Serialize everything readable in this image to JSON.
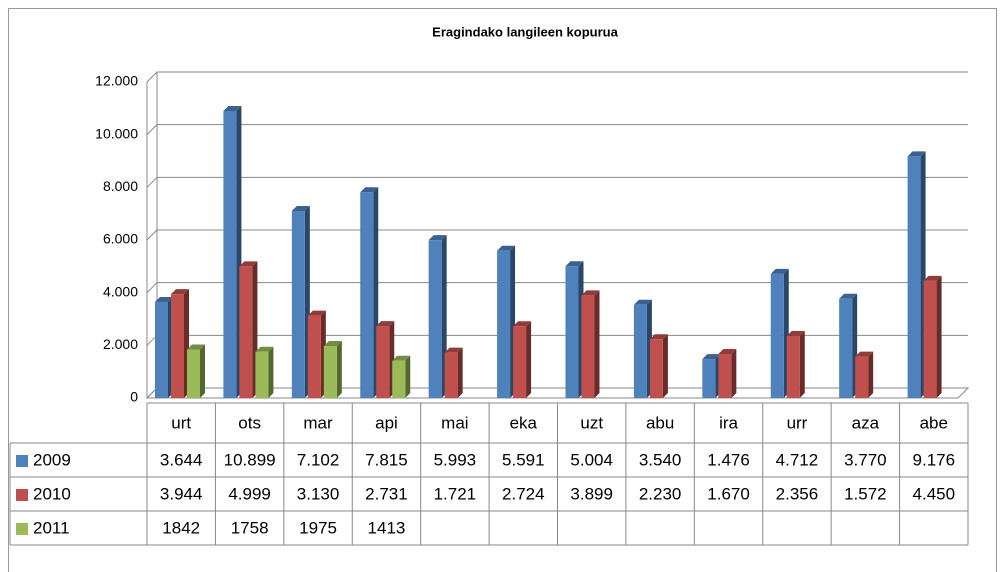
{
  "chart_data": {
    "type": "bar",
    "title": "Eragindako langileen kopurua",
    "categories": [
      "urt",
      "ots",
      "mar",
      "api",
      "mai",
      "eka",
      "uzt",
      "abu",
      "ira",
      "urr",
      "aza",
      "abe"
    ],
    "series": [
      {
        "name": "2009",
        "color": "#4f81bd",
        "values": [
          3644,
          10899,
          7102,
          7815,
          5993,
          5591,
          5004,
          3540,
          1476,
          4712,
          3770,
          9176
        ],
        "value_labels": [
          "3.644",
          "10.899",
          "7.102",
          "7.815",
          "5.993",
          "5.591",
          "5.004",
          "3.540",
          "1.476",
          "4.712",
          "3.770",
          "9.176"
        ]
      },
      {
        "name": "2010",
        "color": "#c0504d",
        "values": [
          3944,
          4999,
          3130,
          2731,
          1721,
          2724,
          3899,
          2230,
          1670,
          2356,
          1572,
          4450
        ],
        "value_labels": [
          "3.944",
          "4.999",
          "3.130",
          "2.731",
          "1.721",
          "2.724",
          "3.899",
          "2.230",
          "1.670",
          "2.356",
          "1.572",
          "4.450"
        ]
      },
      {
        "name": "2011",
        "color": "#9bbb59",
        "values": [
          1842,
          1758,
          1975,
          1413,
          null,
          null,
          null,
          null,
          null,
          null,
          null,
          null
        ]
      }
    ],
    "ylim": [
      0,
      12000
    ],
    "yticks": [
      0,
      {
        "value": 2000,
        "label": "2.000"
      },
      {
        "value": 4000,
        "label": "4.000"
      },
      {
        "value": 6000,
        "label": "6.000"
      },
      {
        "value": 8000,
        "label": "8.000"
      },
      {
        "value": 10000,
        "label": "10.000"
      },
      {
        "value": 12000,
        "label": "12.000"
      }
    ],
    "grid": true
  }
}
